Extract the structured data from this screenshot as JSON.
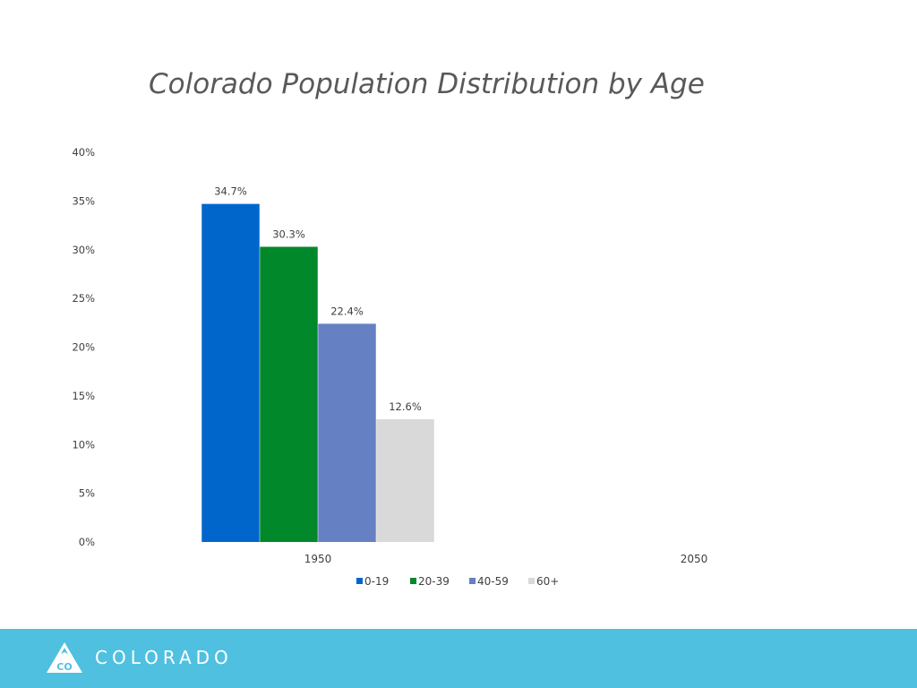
{
  "chart_data": {
    "type": "bar",
    "title": "Colorado Population Distribution by Age",
    "categories": [
      "1950",
      "2050"
    ],
    "series": [
      {
        "name": "0-19",
        "color": "#0066cc",
        "values": [
          34.7,
          null
        ]
      },
      {
        "name": "20-39",
        "color": "#00882b",
        "values": [
          30.3,
          null
        ]
      },
      {
        "name": "40-59",
        "color": "#6680c4",
        "values": [
          22.4,
          null
        ]
      },
      {
        "name": "60+",
        "color": "#d9d9d9",
        "values": [
          12.6,
          null
        ]
      }
    ],
    "data_labels": [
      [
        "34.7%",
        "30.3%",
        "22.4%",
        "12.6%"
      ]
    ],
    "ylim": [
      0,
      40
    ],
    "yticks": [
      "0%",
      "5%",
      "10%",
      "15%",
      "20%",
      "25%",
      "30%",
      "35%",
      "40%"
    ],
    "grid": false,
    "legend": "bottom"
  },
  "footer": {
    "brand": "COLORADO",
    "logo_mark": "CO",
    "color": "#4fc0e0"
  }
}
